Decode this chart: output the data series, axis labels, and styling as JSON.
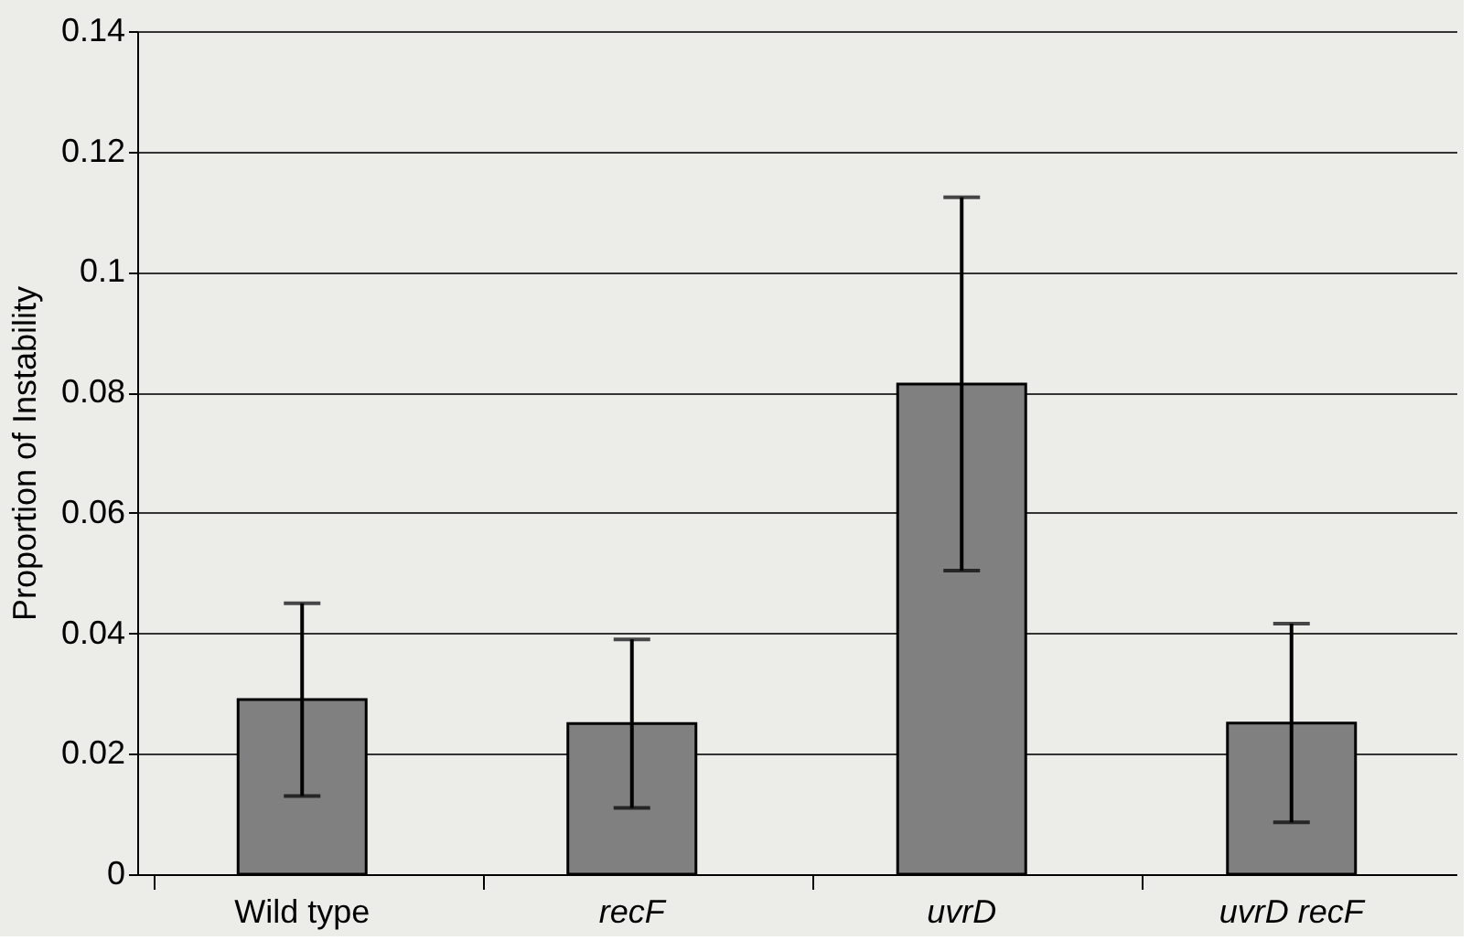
{
  "chart_data": {
    "type": "bar",
    "ylabel": "Proportion of Instability",
    "categories": [
      "Wild type",
      "recF",
      "uvrD",
      "uvrD recF"
    ],
    "values": [
      0.029,
      0.025,
      0.0814,
      0.0251
    ],
    "errors": [
      0.016,
      0.014,
      0.031,
      0.0165
    ],
    "color": "#808080",
    "ylim": [
      0,
      0.14
    ],
    "yticks": [
      0,
      0.02,
      0.04,
      0.06,
      0.08,
      0.1,
      0.12,
      0.14
    ],
    "grid": "y"
  }
}
